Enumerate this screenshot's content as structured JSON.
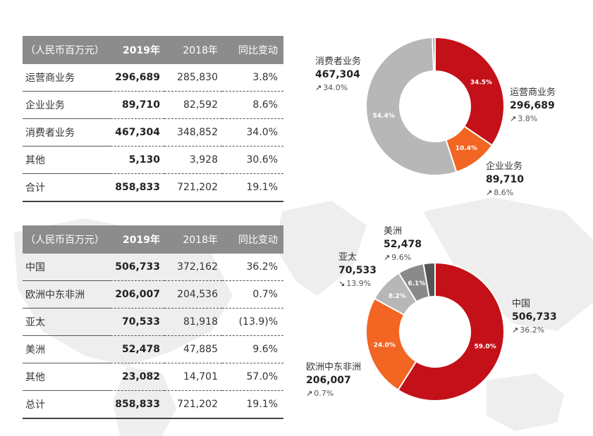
{
  "table1": {
    "headers": [
      "（人民币百万元）",
      "2019年",
      "2018年",
      "同比变动"
    ],
    "rows": [
      [
        "运营商业务",
        "296,689",
        "285,830",
        "3.8%"
      ],
      [
        "企业业务",
        "89,710",
        "82,592",
        "8.6%"
      ],
      [
        "消费者业务",
        "467,304",
        "348,852",
        "34.0%"
      ],
      [
        "其他",
        "5,130",
        "3,928",
        "30.6%"
      ],
      [
        "合计",
        "858,833",
        "721,202",
        "19.1%"
      ]
    ]
  },
  "table2": {
    "headers": [
      "（人民币百万元）",
      "2019年",
      "2018年",
      "同比变动"
    ],
    "rows": [
      [
        "中国",
        "506,733",
        "372,162",
        "36.2%"
      ],
      [
        "欧洲中东非洲",
        "206,007",
        "204,536",
        "0.7%"
      ],
      [
        "亚太",
        "70,533",
        "81,918",
        "(13.9)%"
      ],
      [
        "美洲",
        "52,478",
        "47,885",
        "9.6%"
      ],
      [
        "其他",
        "23,082",
        "14,701",
        "57.0%"
      ],
      [
        "总计",
        "858,833",
        "721,202",
        "19.1%"
      ]
    ]
  },
  "chart_data": [
    {
      "type": "pie",
      "donut": true,
      "slices": [
        {
          "label": "运营商业务",
          "value": 296689,
          "percent_label": "34.5%",
          "change": "3.8%",
          "change_dir": "up",
          "color": "#c41018"
        },
        {
          "label": "企业业务",
          "value": 89710,
          "percent_label": "10.4%",
          "change": "8.6%",
          "change_dir": "up",
          "color": "#f26522"
        },
        {
          "label": "消费者业务",
          "value": 467304,
          "percent_label": "54.4%",
          "change": "34.0%",
          "change_dir": "up",
          "color": "#b7b7b7"
        },
        {
          "label": "其他",
          "value": 5130,
          "percent_label": "",
          "change": "",
          "change_dir": "",
          "color": "#8a8a8a"
        }
      ]
    },
    {
      "type": "pie",
      "donut": true,
      "slices": [
        {
          "label": "中国",
          "value": 506733,
          "percent_label": "59.0%",
          "change": "36.2%",
          "change_dir": "up",
          "color": "#c41018"
        },
        {
          "label": "欧洲中东非洲",
          "value": 206007,
          "percent_label": "24.0%",
          "change": "0.7%",
          "change_dir": "up",
          "color": "#f26522"
        },
        {
          "label": "亚太",
          "value": 70533,
          "percent_label": "8.2%",
          "change": "13.9%",
          "change_dir": "down",
          "color": "#b7b7b7"
        },
        {
          "label": "美洲",
          "value": 52478,
          "percent_label": "6.1%",
          "change": "9.6%",
          "change_dir": "up",
          "color": "#8a8a8a"
        },
        {
          "label": "其他",
          "value": 23082,
          "percent_label": "",
          "change": "",
          "change_dir": "",
          "color": "#555555"
        }
      ]
    }
  ],
  "icons": {
    "up": "arrow-up-right-icon",
    "down": "arrow-down-right-icon"
  }
}
